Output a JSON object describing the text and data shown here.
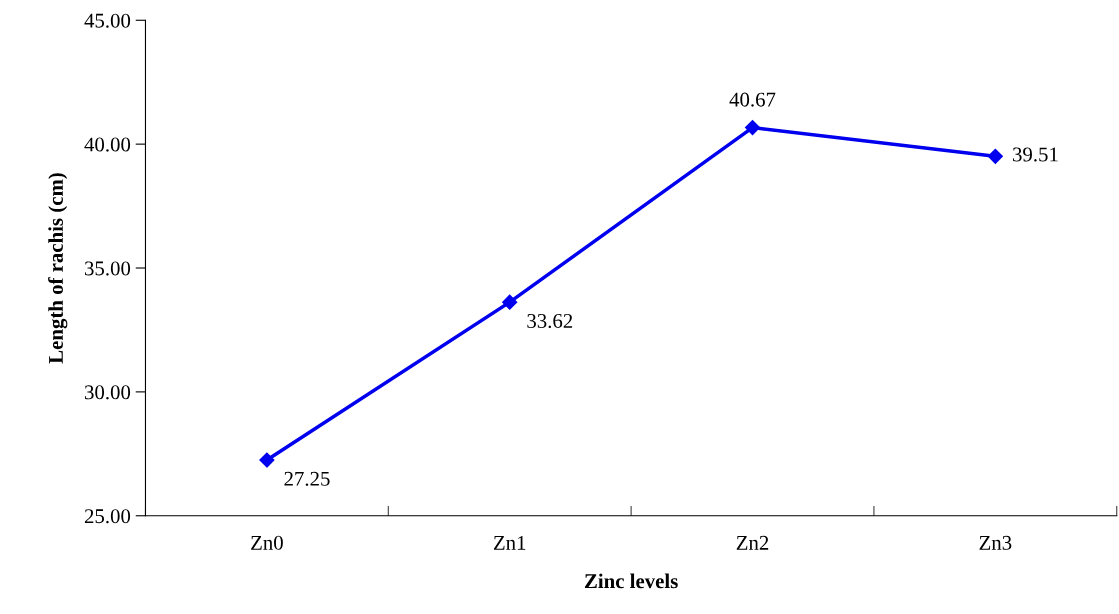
{
  "chart_data": {
    "type": "line",
    "xlabel": "Zinc levels",
    "ylabel": "Length of rachis (cm)",
    "categories": [
      "Zn0",
      "Zn1",
      "Zn2",
      "Zn3"
    ],
    "series": [
      {
        "color": "#0000ee",
        "values": [
          27.25,
          33.62,
          40.67,
          39.51
        ]
      }
    ],
    "ylim": [
      25,
      45
    ],
    "yticks": [
      {
        "value": 25,
        "label": "25.00"
      },
      {
        "value": 30,
        "label": "30.00"
      },
      {
        "value": 35,
        "label": "35.00"
      },
      {
        "value": 40,
        "label": "40.00"
      },
      {
        "value": 45,
        "label": "45.00"
      }
    ],
    "data_labels": true,
    "grid": false,
    "marker": "diamond",
    "line_style": "solid"
  }
}
